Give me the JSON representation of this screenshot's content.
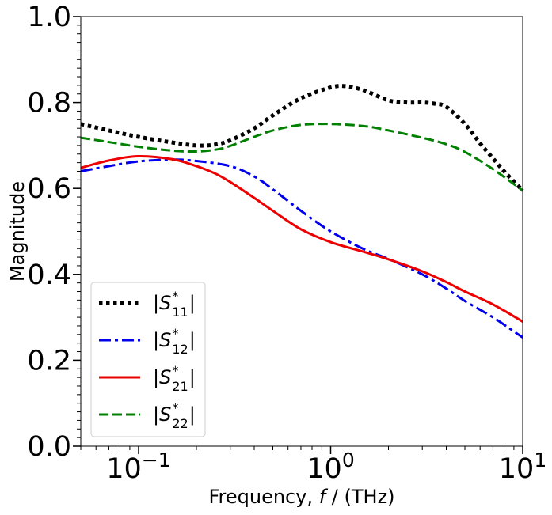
{
  "chart_data": {
    "type": "line",
    "xscale": "log",
    "xlabel": "Frequency, f / (THz)",
    "ylabel": "Magnitude",
    "xlim": [
      0.05,
      10
    ],
    "ylim": [
      0.0,
      1.0
    ],
    "y_ticks": [
      {
        "value": 0.0,
        "label": "0.0"
      },
      {
        "value": 0.2,
        "label": "0.2"
      },
      {
        "value": 0.4,
        "label": "0.4"
      },
      {
        "value": 0.6,
        "label": "0.6"
      },
      {
        "value": 0.8,
        "label": "0.8"
      },
      {
        "value": 1.0,
        "label": "1.0"
      }
    ],
    "x_ticks": [
      {
        "value": 0.1,
        "base": "10",
        "exp": "−1"
      },
      {
        "value": 1,
        "base": "10",
        "exp": "0"
      },
      {
        "value": 10,
        "base": "10",
        "exp": "1"
      }
    ],
    "legend_position": "lower-left",
    "series": [
      {
        "name": "|S*11|",
        "sub": "11",
        "color": "#000000",
        "style": "dotted",
        "x": [
          0.05,
          0.07,
          0.1,
          0.15,
          0.2,
          0.25,
          0.3,
          0.4,
          0.5,
          0.7,
          1.0,
          1.2,
          1.5,
          2.0,
          2.5,
          3.0,
          3.5,
          4.0,
          5.0,
          6.0,
          7.0,
          8.0,
          10.0
        ],
        "y": [
          0.75,
          0.735,
          0.72,
          0.707,
          0.7,
          0.702,
          0.712,
          0.74,
          0.77,
          0.81,
          0.835,
          0.838,
          0.828,
          0.805,
          0.8,
          0.8,
          0.797,
          0.79,
          0.75,
          0.705,
          0.67,
          0.64,
          0.595
        ]
      },
      {
        "name": "|S*12|",
        "sub": "12",
        "color": "#0000ee",
        "style": "dashdot",
        "x": [
          0.05,
          0.07,
          0.1,
          0.15,
          0.2,
          0.3,
          0.4,
          0.5,
          0.7,
          1.0,
          1.5,
          2.0,
          3.0,
          4.0,
          5.0,
          7.0,
          10.0
        ],
        "y": [
          0.64,
          0.652,
          0.663,
          0.667,
          0.664,
          0.652,
          0.628,
          0.598,
          0.548,
          0.5,
          0.458,
          0.436,
          0.4,
          0.367,
          0.338,
          0.3,
          0.253
        ]
      },
      {
        "name": "|S*21|",
        "sub": "21",
        "color": "#ee0000",
        "style": "solid",
        "x": [
          0.05,
          0.07,
          0.1,
          0.15,
          0.2,
          0.25,
          0.3,
          0.4,
          0.5,
          0.7,
          1.0,
          1.5,
          2.0,
          3.0,
          4.0,
          5.0,
          7.0,
          10.0
        ],
        "y": [
          0.648,
          0.665,
          0.675,
          0.668,
          0.652,
          0.635,
          0.615,
          0.578,
          0.548,
          0.505,
          0.475,
          0.452,
          0.435,
          0.407,
          0.382,
          0.36,
          0.33,
          0.29
        ]
      },
      {
        "name": "|S*22|",
        "sub": "22",
        "color": "#008000",
        "style": "dashed",
        "x": [
          0.05,
          0.07,
          0.1,
          0.15,
          0.2,
          0.25,
          0.3,
          0.4,
          0.5,
          0.7,
          1.0,
          1.5,
          2.0,
          3.0,
          4.0,
          5.0,
          7.0,
          10.0
        ],
        "y": [
          0.718,
          0.708,
          0.697,
          0.688,
          0.686,
          0.69,
          0.699,
          0.72,
          0.735,
          0.748,
          0.75,
          0.745,
          0.735,
          0.718,
          0.703,
          0.685,
          0.645,
          0.595
        ]
      }
    ]
  }
}
